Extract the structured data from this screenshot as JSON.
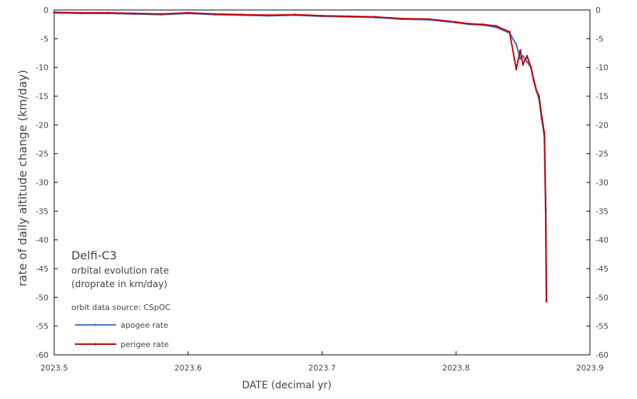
{
  "chart_data": {
    "type": "line",
    "xlabel": "DATE (decimal yr)",
    "ylabel": "rate of daily altitude change  (km/day)",
    "xlim": [
      2023.5,
      2023.9
    ],
    "ylim": [
      -60,
      0
    ],
    "xticks": [
      "2023.5",
      "2023.6",
      "2023.7",
      "2023.8",
      "2023.9"
    ],
    "yticks": [
      "0",
      "-5",
      "-10",
      "-15",
      "-20",
      "-25",
      "-30",
      "-35",
      "-40",
      "-45",
      "-50",
      "-55",
      "-60"
    ],
    "grid": false,
    "legend_position": "bottom-left",
    "annotations": {
      "title": "Delfi-C3",
      "subtitle_line1": "orbital evolution rate",
      "subtitle_line2": "(droprate in km/day)",
      "source": "orbit data source:  CSpOC"
    },
    "series": [
      {
        "name": "apogee rate",
        "color": "#4472c4",
        "x": [
          2023.5,
          2023.52,
          2023.54,
          2023.56,
          2023.58,
          2023.6,
          2023.62,
          2023.64,
          2023.66,
          2023.68,
          2023.7,
          2023.72,
          2023.74,
          2023.76,
          2023.78,
          2023.8,
          2023.81,
          2023.82,
          2023.83,
          2023.84,
          2023.845,
          2023.848,
          2023.85,
          2023.853,
          2023.856,
          2023.858,
          2023.86,
          2023.862,
          2023.864,
          2023.866,
          2023.867,
          2023.8675
        ],
        "y": [
          -0.5,
          -0.6,
          -0.6,
          -0.7,
          -0.8,
          -0.6,
          -0.8,
          -0.9,
          -1.0,
          -0.9,
          -1.1,
          -1.2,
          -1.3,
          -1.6,
          -1.7,
          -2.2,
          -2.5,
          -2.6,
          -3.0,
          -4.0,
          -6.0,
          -8.5,
          -8.0,
          -9.0,
          -10.0,
          -12.0,
          -14.0,
          -15.5,
          -19.0,
          -22.0,
          -35.0,
          -50.5
        ]
      },
      {
        "name": "perigee rate",
        "color": "#c00000",
        "x": [
          2023.5,
          2023.52,
          2023.54,
          2023.56,
          2023.58,
          2023.6,
          2023.62,
          2023.64,
          2023.66,
          2023.68,
          2023.7,
          2023.72,
          2023.74,
          2023.76,
          2023.78,
          2023.8,
          2023.81,
          2023.82,
          2023.83,
          2023.84,
          2023.845,
          2023.848,
          2023.85,
          2023.853,
          2023.856,
          2023.858,
          2023.86,
          2023.862,
          2023.864,
          2023.866,
          2023.867,
          2023.8675
        ],
        "y": [
          -0.4,
          -0.5,
          -0.5,
          -0.6,
          -0.7,
          -0.5,
          -0.7,
          -0.8,
          -0.9,
          -0.8,
          -1.0,
          -1.1,
          -1.2,
          -1.5,
          -1.6,
          -2.1,
          -2.4,
          -2.5,
          -2.8,
          -3.8,
          -10.3,
          -7.0,
          -9.5,
          -8.0,
          -10.0,
          -12.3,
          -14.0,
          -15.0,
          -18.5,
          -21.5,
          -34.5,
          -50.7
        ]
      }
    ]
  }
}
